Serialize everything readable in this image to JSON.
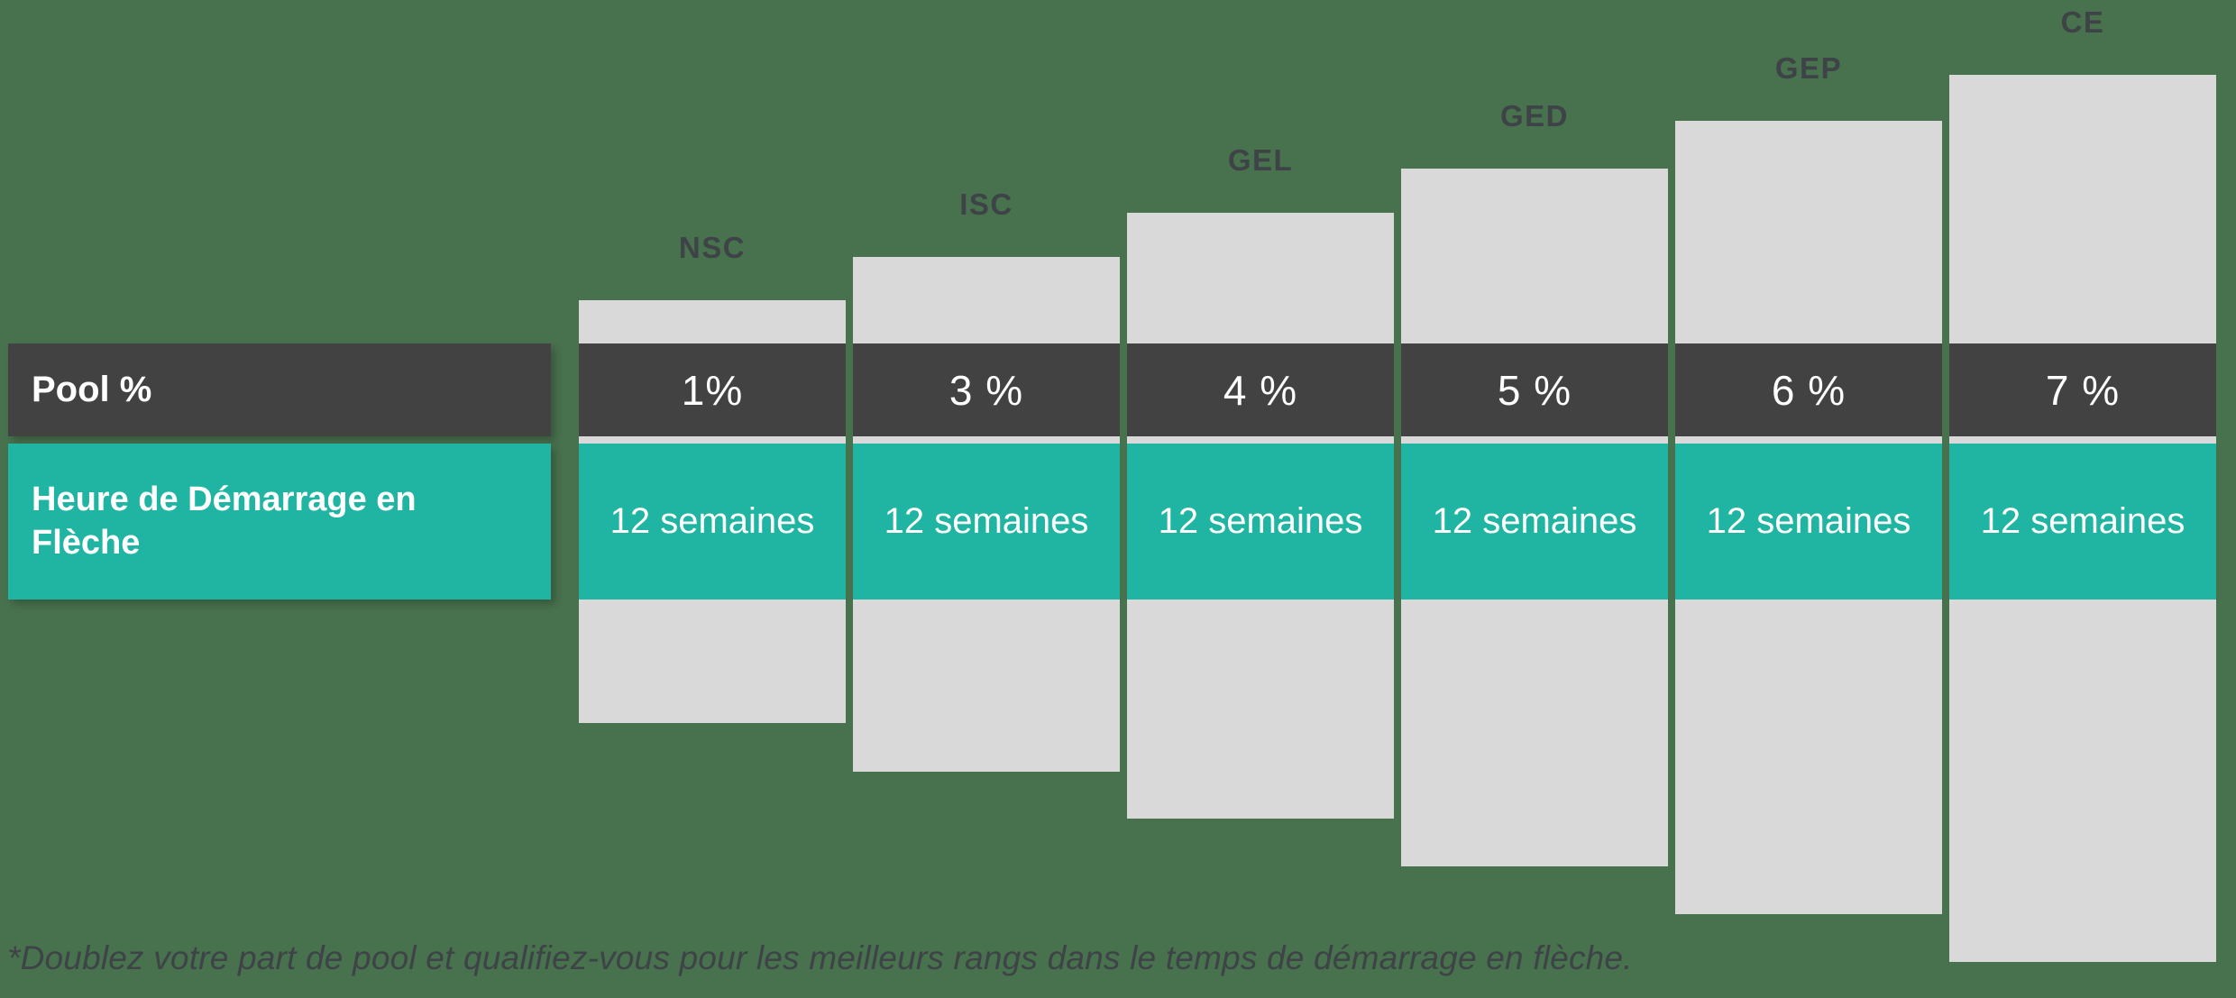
{
  "title_row_labels": {
    "pool": "Pool %",
    "sprint": "Heure de Démarrage en Flèche"
  },
  "footnote": "*Doublez votre part de pool et qualifiez-vous pour les meilleurs rangs dans le temps de démarrage en flèche.",
  "colors": {
    "background": "#48714D",
    "bar": "#D9D9D9",
    "pool_band": "#424242",
    "sprint_band": "#20B5A3",
    "heading_text": "#3E4347",
    "value_text": "#FFFFFF"
  },
  "chart_data": {
    "type": "bar",
    "title": "",
    "categories": [
      "NSC",
      "ISC",
      "GEL",
      "GED",
      "GEP",
      "CE"
    ],
    "series": [
      {
        "name": "Pool %",
        "values": [
          "1%",
          "3 %",
          "4 %",
          "5 %",
          "6 %",
          "7 %"
        ]
      },
      {
        "name": "Heure de Démarrage en Flèche",
        "values": [
          "12 semaines",
          "12 semaines",
          "12 semaines",
          "12 semaines",
          "12 semaines",
          "12 semaines"
        ]
      }
    ],
    "layout_hints": {
      "orientation": "vertical staircase, bars rise left-to-right",
      "legend_position": "left row labels",
      "grid": "off"
    }
  }
}
